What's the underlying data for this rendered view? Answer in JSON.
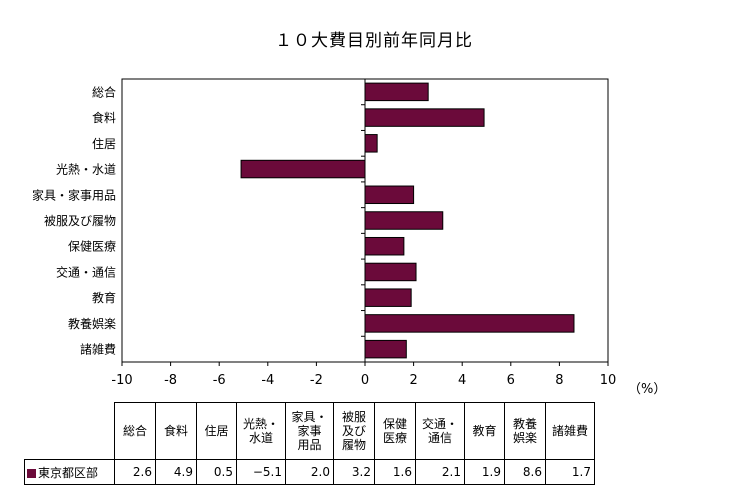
{
  "chart_data": {
    "type": "bar",
    "orientation": "horizontal",
    "title": "１０大費目別前年同月比",
    "categories": [
      "総合",
      "食料",
      "住居",
      "光熱・水道",
      "家具・家事用品",
      "被服及び履物",
      "保健医療",
      "交通・通信",
      "教育",
      "教養娯楽",
      "諸雑費"
    ],
    "series": [
      {
        "name": "東京都区部",
        "values": [
          2.6,
          4.9,
          0.5,
          -5.1,
          2.0,
          3.2,
          1.6,
          2.1,
          1.9,
          8.6,
          1.7
        ],
        "color": "#6b0a3a"
      }
    ],
    "xlim": [
      -10,
      10
    ],
    "x_ticks": [
      -10,
      -8,
      -6,
      -4,
      -2,
      0,
      2,
      4,
      6,
      8,
      10
    ],
    "unit": "（%）",
    "grid": false
  },
  "table": {
    "headers": [
      "総合",
      "食料",
      "住居",
      "光熱・\n水道",
      "家具・\n家事\n用品",
      "被服\n及び\n履物",
      "保健\n医療",
      "交通・\n通信",
      "教育",
      "教養\n娯楽",
      "諸雑費"
    ],
    "row_label": "東京都区部",
    "values": [
      "2.6",
      "4.9",
      "0.5",
      "−5.1",
      "2.0",
      "3.2",
      "1.6",
      "2.1",
      "1.9",
      "8.6",
      "1.7"
    ]
  },
  "colors": {
    "bar": "#6b0a3a",
    "axis": "#000000"
  }
}
